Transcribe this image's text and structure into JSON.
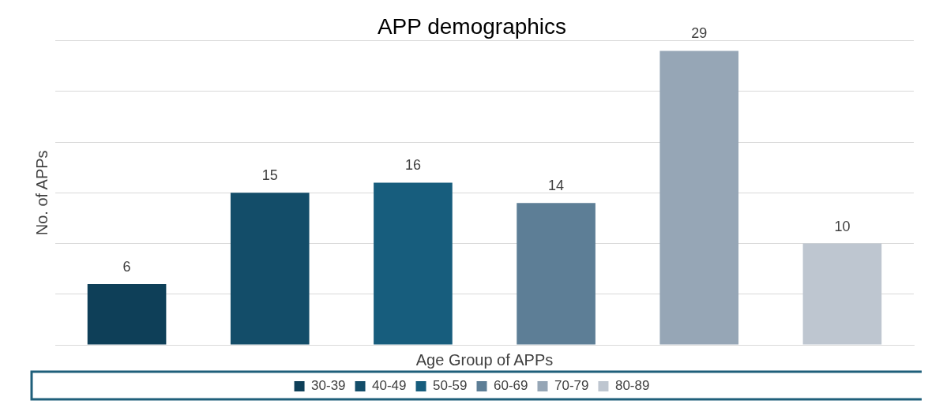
{
  "chart_data": {
    "type": "bar",
    "title": "APP demographics",
    "xlabel": "Age Group of APPs",
    "ylabel": "No. of APPs",
    "categories": [
      null,
      null,
      null,
      null,
      null,
      null
    ],
    "stacked": true,
    "series": [
      {
        "name": "30-39",
        "color": "#0e3f58",
        "values": [
          6,
          null,
          null,
          null,
          null,
          null
        ]
      },
      {
        "name": "40-49",
        "color": "#134d69",
        "values": [
          null,
          15,
          null,
          null,
          null,
          null
        ]
      },
      {
        "name": "50-59",
        "color": "#175d7d",
        "values": [
          null,
          null,
          16,
          null,
          null,
          null
        ]
      },
      {
        "name": "60-69",
        "color": "#5d7e96",
        "values": [
          null,
          null,
          null,
          14,
          null,
          null
        ]
      },
      {
        "name": "70-79",
        "color": "#96a6b6",
        "values": [
          null,
          null,
          null,
          null,
          29,
          null
        ]
      },
      {
        "name": "80-89",
        "color": "#bec6d0",
        "values": [
          null,
          null,
          null,
          null,
          null,
          10
        ]
      }
    ],
    "tick_labels": false,
    "grid": "y",
    "legend": "bottom",
    "data_labels": true
  }
}
